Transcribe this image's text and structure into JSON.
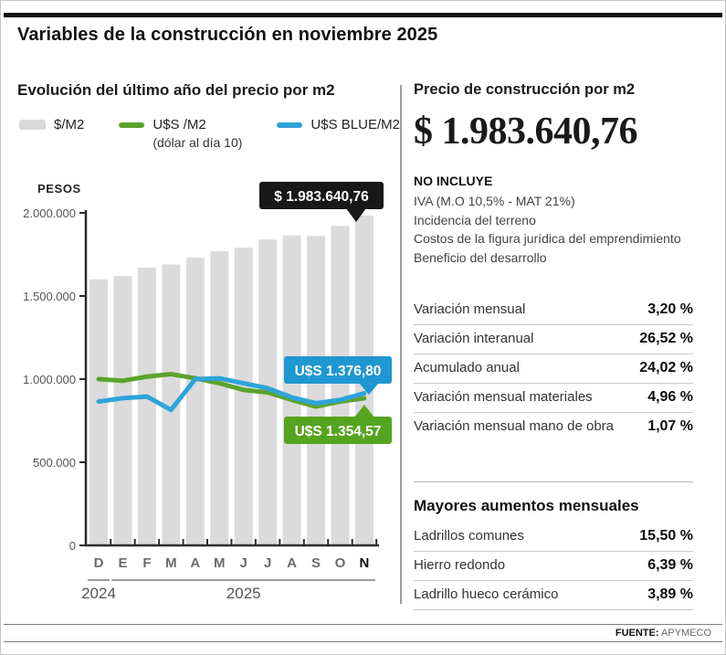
{
  "page": {
    "title": "Variables de la construcción en noviembre 2025"
  },
  "left_panel": {
    "heading": "Evolución del último año del precio por m2",
    "legend": [
      {
        "label": "$/M2",
        "sublabel": "",
        "color": "#d9d9d9"
      },
      {
        "label": "U$S /M2",
        "sublabel": "(dólar al día 10)",
        "color": "#5ca32d"
      },
      {
        "label": "U$S BLUE/M2",
        "sublabel": "",
        "color": "#2da4da"
      }
    ]
  },
  "chart_data": {
    "type": "bar+line",
    "title": "Evolución del último año del precio por m2",
    "ylabel": "PESOS",
    "ylim": [
      0,
      2000000
    ],
    "grid": false,
    "yticks": [
      {
        "value": 0,
        "label": "0"
      },
      {
        "value": 500000,
        "label": "500.000"
      },
      {
        "value": 1000000,
        "label": "1.000.000"
      },
      {
        "value": 1500000,
        "label": "1.500.000"
      },
      {
        "value": 2000000,
        "label": "2.000.000"
      }
    ],
    "categories": [
      "D",
      "E",
      "F",
      "M",
      "A",
      "M",
      "J",
      "J",
      "A",
      "S",
      "O",
      "N"
    ],
    "year_groups": [
      {
        "label": "2024",
        "from": 0,
        "to": 0
      },
      {
        "label": "2025",
        "from": 1,
        "to": 11
      }
    ],
    "bars": {
      "name": "$/M2",
      "color": "#dbdbdb",
      "values": [
        1600000,
        1620000,
        1670000,
        1690000,
        1730000,
        1770000,
        1790000,
        1840000,
        1865000,
        1860000,
        1921000,
        1983641
      ]
    },
    "series": [
      {
        "name": "U$S /M2 (dólar al día 10)",
        "color": "#5ca32d",
        "values_pesos_axis": [
          1000000,
          990000,
          1015000,
          1030000,
          1005000,
          975000,
          935000,
          920000,
          875000,
          835000,
          865000,
          885000
        ],
        "last_value_label": "U$S 1.354,57"
      },
      {
        "name": "U$S BLUE/M2",
        "color": "#2da4da",
        "values_pesos_axis": [
          865000,
          885000,
          895000,
          815000,
          1000000,
          1005000,
          975000,
          945000,
          890000,
          855000,
          875000,
          915000
        ],
        "last_value_label": "U$S 1.376,80"
      }
    ],
    "annotations": [
      {
        "target": "last-bar",
        "text": "$ 1.983.640,76",
        "bg": "#181818",
        "fg": "#ffffff"
      },
      {
        "target": "blue-line-end",
        "text": "U$S 1.376,80",
        "bg": "#1f97d1",
        "fg": "#ffffff"
      },
      {
        "target": "green-line-end",
        "text": "U$S 1.354,57",
        "bg": "#55a41f",
        "fg": "#ffffff"
      }
    ]
  },
  "right_panel": {
    "heading": "Precio de construcción por m2",
    "price": "$ 1.983.640,76",
    "no_incluye_title": "NO INCLUYE",
    "no_incluye_items": [
      "IVA (M.O 10,5% - MAT 21%)",
      "Incidencia del terreno",
      "Costos de la figura jurídica del emprendimiento",
      "Beneficio del desarrollo"
    ],
    "stats": [
      {
        "label": "Variación mensual",
        "value": "3,20 %"
      },
      {
        "label": "Variación interanual",
        "value": "26,52 %"
      },
      {
        "label": "Acumulado anual",
        "value": "24,02 %"
      },
      {
        "label": "Variación mensual materiales",
        "value": "4,96 %"
      },
      {
        "label": "Variación mensual mano de obra",
        "value": "1,07 %"
      }
    ],
    "aumentos_heading": "Mayores aumentos mensuales",
    "aumentos": [
      {
        "label": "Ladrillos comunes",
        "value": "15,50 %"
      },
      {
        "label": "Hierro redondo",
        "value": "6,39 %"
      },
      {
        "label": "Ladrillo hueco cerámico",
        "value": "3,89 %"
      }
    ]
  },
  "footer": {
    "source_label": "FUENTE:",
    "source_value": "APYMECO"
  }
}
